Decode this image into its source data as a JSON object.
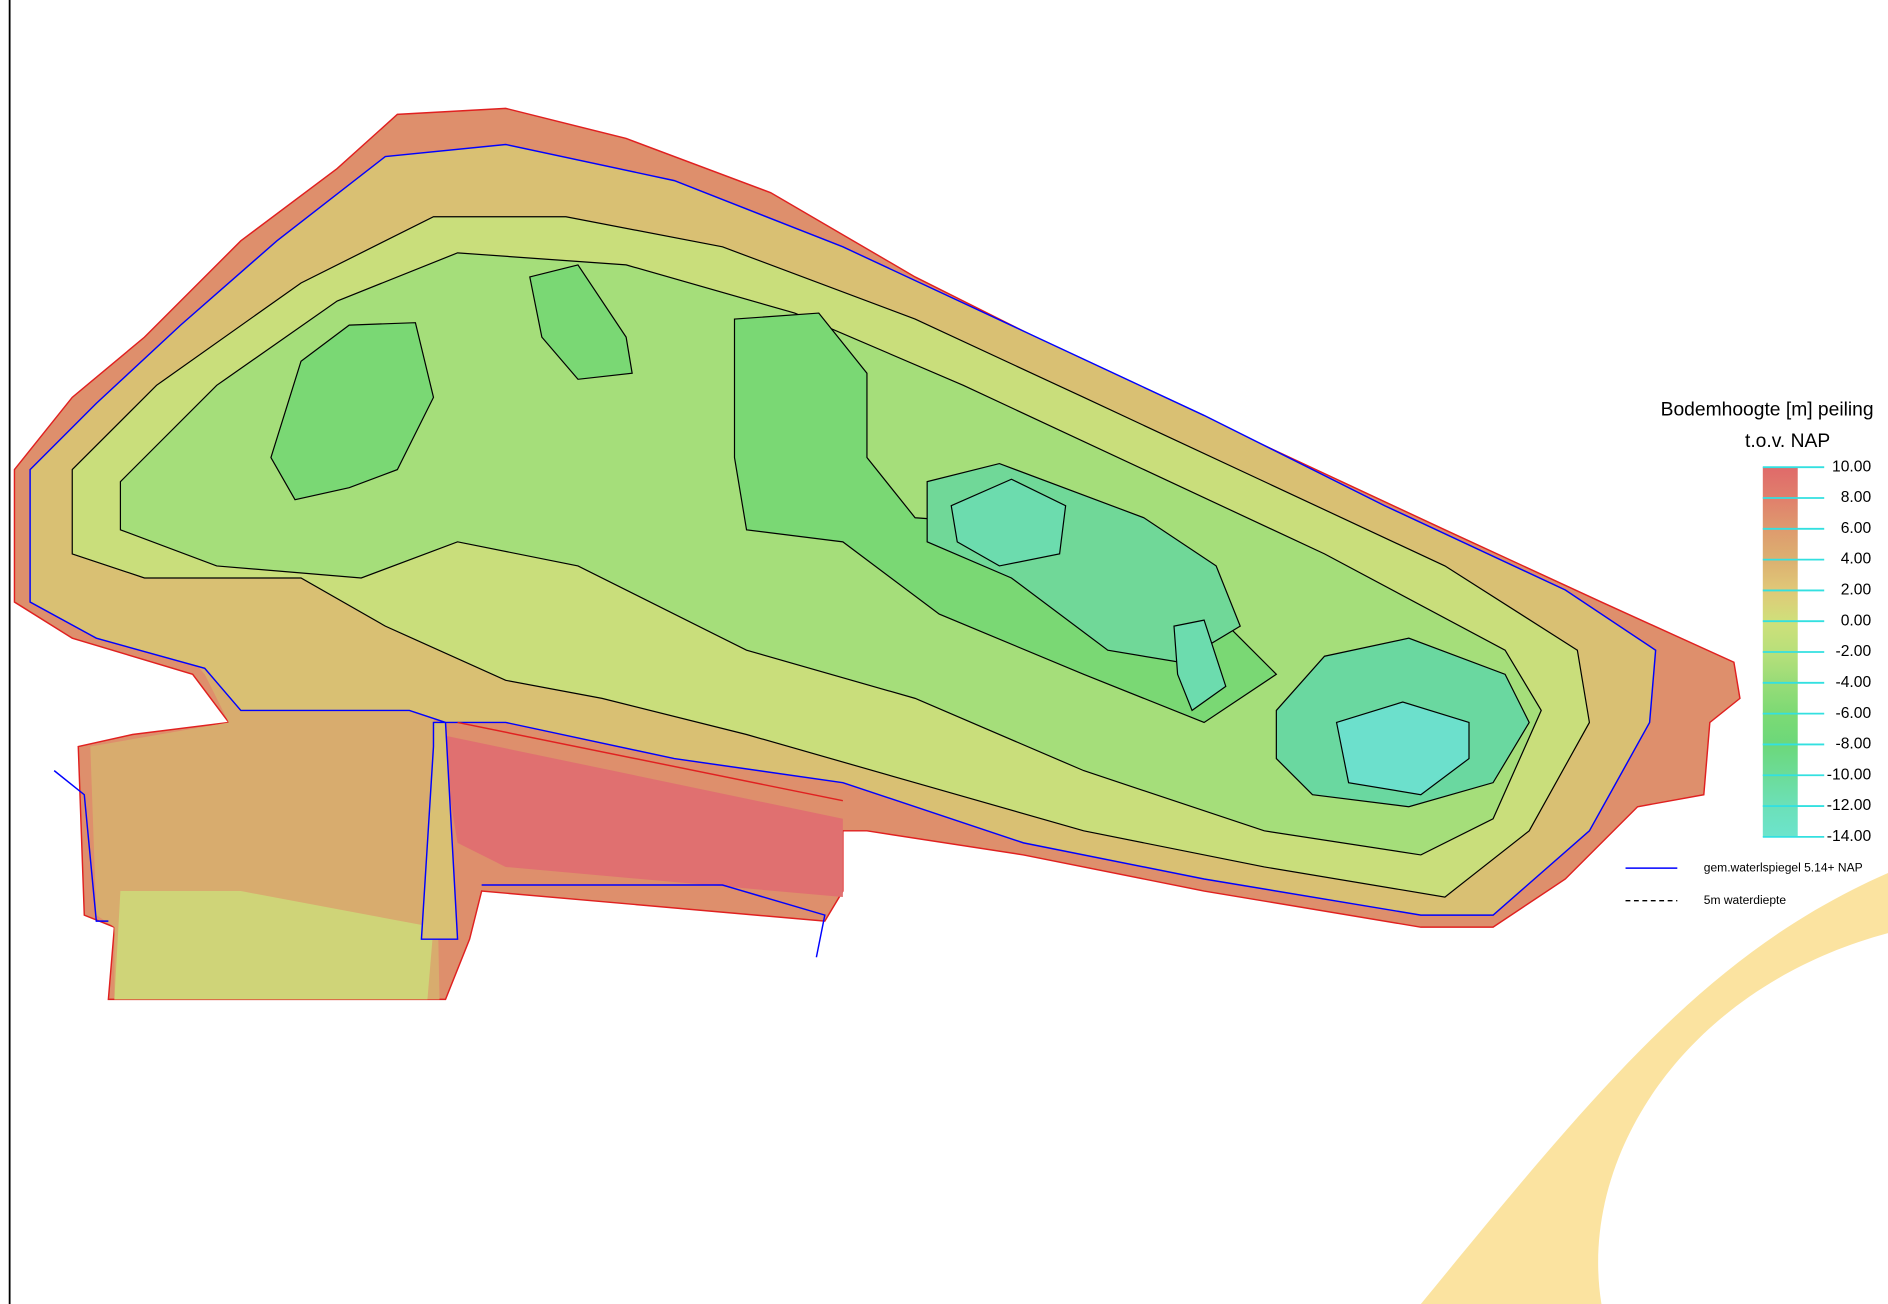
{
  "legend": {
    "title": [
      "Bodemhoogte [m] peiling",
      "t.o.v. NAP"
    ],
    "stops": [
      {
        "value": 10,
        "label": "10.00",
        "color": "#e06a6a"
      },
      {
        "value": 8,
        "label": "8.00",
        "color": "#e07f6c"
      },
      {
        "value": 6,
        "label": "6.00",
        "color": "#de9a6e"
      },
      {
        "value": 4,
        "label": "4.00",
        "color": "#dcb070"
      },
      {
        "value": 2,
        "label": "2.00",
        "color": "#e0c878"
      },
      {
        "value": 0,
        "label": "0.00",
        "color": "#cfe07a"
      },
      {
        "value": -2,
        "label": "-2.00",
        "color": "#b8e07a"
      },
      {
        "value": -4,
        "label": "-4.00",
        "color": "#98dc78"
      },
      {
        "value": -6,
        "label": "-6.00",
        "color": "#7cda74"
      },
      {
        "value": -8,
        "label": "-8.00",
        "color": "#6cd87a"
      },
      {
        "value": -10,
        "label": "-10.00",
        "color": "#6cdc98"
      },
      {
        "value": -12,
        "label": "-12.00",
        "color": "#6ce0b8"
      },
      {
        "value": -14,
        "label": "-14.00",
        "color": "#6ce4cc"
      }
    ],
    "lines": [
      {
        "label": "gem.waterlspiegel 5.14+ NAP",
        "color": "#0000ff",
        "dashed": false
      },
      {
        "label": "5m waterdiepte",
        "color": "#000000",
        "dashed": true
      }
    ]
  }
}
